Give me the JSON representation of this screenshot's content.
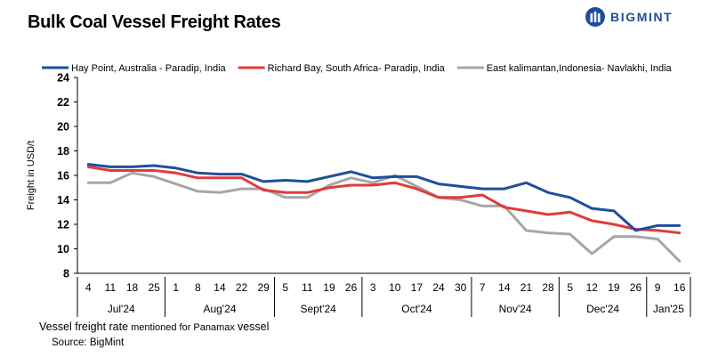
{
  "header": {
    "title": "Bulk Coal Vessel Freight Rates",
    "logo_text": "BIGMINT"
  },
  "footer": {
    "note_main": "Vessel freight rate",
    "note_small": " mentioned for Panamax ",
    "note_end": "vessel",
    "source": "Source:  BigMint"
  },
  "chart_data": {
    "type": "line",
    "ylabel": "Freight  in USD/t",
    "xlabel": "",
    "ylim": [
      8,
      24
    ],
    "yticks": [
      8,
      10,
      12,
      14,
      16,
      18,
      20,
      22,
      24
    ],
    "grid": false,
    "legend_position": "top",
    "x": [
      "4",
      "11",
      "18",
      "25",
      "1",
      "8",
      "14",
      "22",
      "29",
      "5",
      "11",
      "19",
      "26",
      "3",
      "10",
      "17",
      "24",
      "30",
      "7",
      "14",
      "21",
      "28",
      "5",
      "12",
      "19",
      "26",
      "9",
      "16"
    ],
    "month_groups": [
      {
        "label": "Jul'24",
        "start": 0,
        "end": 3
      },
      {
        "label": "Aug'24",
        "start": 4,
        "end": 8
      },
      {
        "label": "Sept'24",
        "start": 9,
        "end": 12
      },
      {
        "label": "Oct'24",
        "start": 13,
        "end": 17
      },
      {
        "label": "Nov'24",
        "start": 18,
        "end": 21
      },
      {
        "label": "Dec'24",
        "start": 22,
        "end": 25
      },
      {
        "label": "Jan'25",
        "start": 26,
        "end": 27
      }
    ],
    "series": [
      {
        "name": "Hay Point, Australia - Paradip, India",
        "color": "#1f4e9c",
        "values": [
          16.9,
          16.7,
          16.7,
          16.8,
          16.6,
          16.2,
          16.1,
          16.1,
          15.5,
          15.6,
          15.5,
          15.9,
          16.3,
          15.8,
          15.9,
          15.9,
          15.3,
          15.1,
          14.9,
          14.9,
          15.4,
          14.6,
          14.2,
          13.3,
          13.1,
          11.5,
          11.9,
          11.9
        ]
      },
      {
        "name": "Richard Bay, South Africa- Paradip, India",
        "color": "#e23b3b",
        "values": [
          16.7,
          16.4,
          16.4,
          16.4,
          16.2,
          15.8,
          15.8,
          15.8,
          14.8,
          14.6,
          14.6,
          15.0,
          15.2,
          15.2,
          15.4,
          14.9,
          14.2,
          14.2,
          14.4,
          13.4,
          13.1,
          12.8,
          13.0,
          12.3,
          12.0,
          11.6,
          11.5,
          11.3
        ]
      },
      {
        "name": "East kalimantan,Indonesia- Navlakhi, India",
        "color": "#a6a6a6",
        "values": [
          15.4,
          15.4,
          16.2,
          15.9,
          15.3,
          14.7,
          14.6,
          14.9,
          14.9,
          14.2,
          14.2,
          15.2,
          15.8,
          15.4,
          16.0,
          15.1,
          14.2,
          14.0,
          13.5,
          13.5,
          11.5,
          11.3,
          11.2,
          9.6,
          11.0,
          11.0,
          10.8,
          9.0
        ]
      }
    ]
  }
}
